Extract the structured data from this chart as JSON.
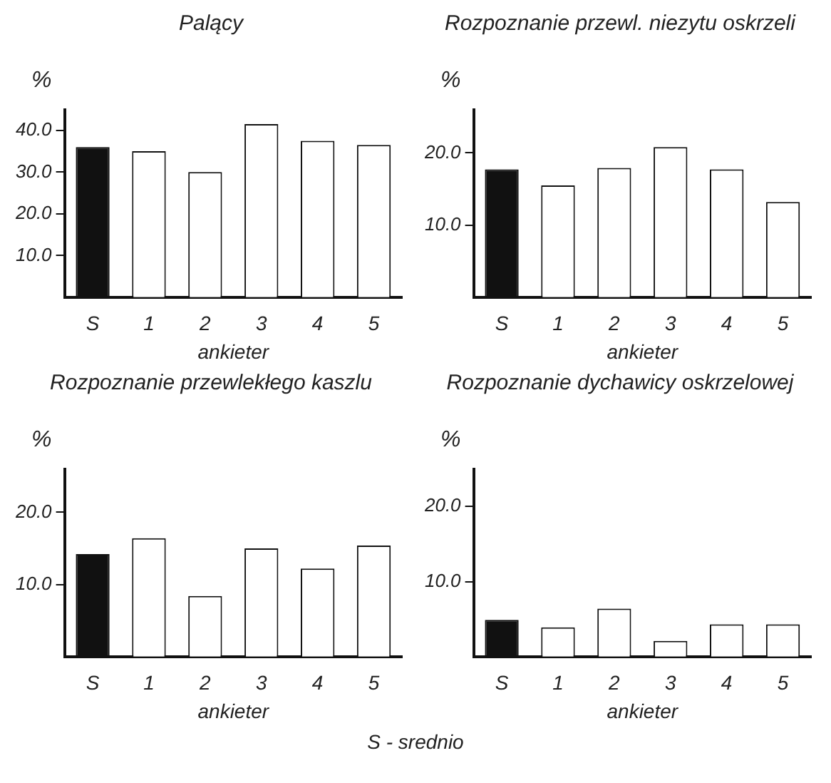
{
  "chart_data": [
    {
      "type": "bar",
      "title": "Palący",
      "ylabel": "%",
      "xlabel": "ankieter",
      "categories": [
        "S",
        "1",
        "2",
        "3",
        "4",
        "5"
      ],
      "values": [
        36,
        35,
        30,
        41.5,
        37.5,
        36.5
      ],
      "colors": [
        "#111111",
        "#ffffff",
        "#ffffff",
        "#ffffff",
        "#ffffff",
        "#ffffff"
      ],
      "ylim": [
        0,
        45
      ],
      "yticks": [
        {
          "value": 10,
          "label": "10.0"
        },
        {
          "value": 20,
          "label": "20.0"
        },
        {
          "value": 30,
          "label": "30.0"
        },
        {
          "value": 40,
          "label": "40.0"
        }
      ]
    },
    {
      "type": "bar",
      "title": "Rozpoznanie przewl. niezytu oskrzeli",
      "ylabel": "%",
      "xlabel": "ankieter",
      "categories": [
        "S",
        "1",
        "2",
        "3",
        "4",
        "5"
      ],
      "values": [
        17.7,
        15.5,
        17.9,
        20.8,
        17.7,
        13.2
      ],
      "colors": [
        "#111111",
        "#ffffff",
        "#ffffff",
        "#ffffff",
        "#ffffff",
        "#ffffff"
      ],
      "ylim": [
        0,
        26
      ],
      "yticks": [
        {
          "value": 10,
          "label": "10.0"
        },
        {
          "value": 20,
          "label": "20.0"
        }
      ]
    },
    {
      "type": "bar",
      "title": "Rozpoznanie przewlekłego kaszlu",
      "ylabel": "%",
      "xlabel": "ankieter",
      "categories": [
        "S",
        "1",
        "2",
        "3",
        "4",
        "5"
      ],
      "values": [
        14.2,
        16.4,
        8.4,
        15,
        12.2,
        15.4
      ],
      "colors": [
        "#111111",
        "#ffffff",
        "#ffffff",
        "#ffffff",
        "#ffffff",
        "#ffffff"
      ],
      "ylim": [
        0,
        26
      ],
      "yticks": [
        {
          "value": 10,
          "label": "10.0"
        },
        {
          "value": 20,
          "label": "20.0"
        }
      ],
      "annotations": [
        "S - srednio"
      ]
    },
    {
      "type": "bar",
      "title": "Rozpoznanie dychawicy oskrzelowej",
      "ylabel": "%",
      "xlabel": "ankieter",
      "categories": [
        "S",
        "1",
        "2",
        "3",
        "4",
        "5"
      ],
      "values": [
        4.9,
        3.9,
        6.4,
        2.1,
        4.3,
        4.3
      ],
      "colors": [
        "#111111",
        "#ffffff",
        "#ffffff",
        "#ffffff",
        "#ffffff",
        "#ffffff"
      ],
      "ylim": [
        0,
        25
      ],
      "yticks": [
        {
          "value": 10,
          "label": "10.0"
        },
        {
          "value": 20,
          "label": "20.0"
        }
      ]
    }
  ]
}
